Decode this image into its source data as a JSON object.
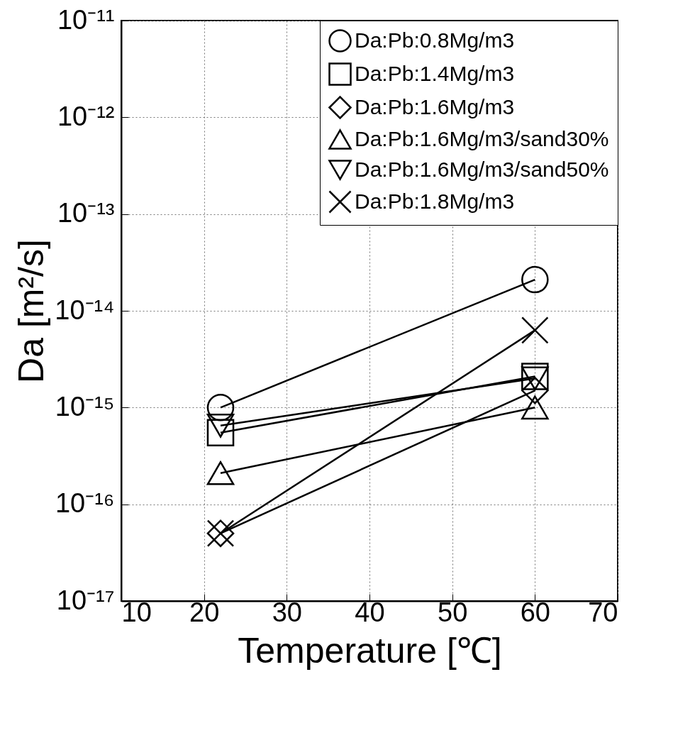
{
  "chart_data": {
    "type": "line",
    "xlabel": "Temperature [℃]",
    "ylabel": "Da [m²/s]",
    "x": [
      22,
      60
    ],
    "series": [
      {
        "name": "Da:Pb:0.8Mg/m3",
        "color": "#000000",
        "marker": "circle",
        "values": [
          1e-15,
          2.1e-14
        ]
      },
      {
        "name": "Da:Pb:1.4Mg/m3",
        "color": "#000000",
        "marker": "square",
        "values": [
          5.5e-16,
          2.1e-15
        ]
      },
      {
        "name": "Da:Pb:1.6Mg/m3",
        "color": "#000000",
        "marker": "diamond",
        "values": [
          5e-17,
          1.5e-15
        ]
      },
      {
        "name": "Da:Pb:1.6Mg/m3/sand30%",
        "color": "#000000",
        "marker": "triangle",
        "values": [
          2.1e-16,
          1e-15
        ]
      },
      {
        "name": "Da:Pb:1.6Mg/m3/sand50%",
        "color": "#000000",
        "marker": "triangle-down",
        "values": [
          6.5e-16,
          2e-15
        ]
      },
      {
        "name": "Da:Pb:1.8Mg/m3",
        "color": "#000000",
        "marker": "cross",
        "values": [
          5e-17,
          6.3e-15
        ]
      }
    ],
    "xlim": [
      10,
      70
    ],
    "xticks": [
      10,
      20,
      30,
      40,
      50,
      60,
      70
    ],
    "ylim": [
      1e-17,
      1e-11
    ],
    "log": true,
    "yticks": [
      {
        "value": 1e-17,
        "label": "10⁻¹⁷"
      },
      {
        "value": 1e-16,
        "label": "10⁻¹⁶"
      },
      {
        "value": 1e-15,
        "label": "10⁻¹⁵"
      },
      {
        "value": 1e-14,
        "label": "10⁻¹⁴"
      },
      {
        "value": 1e-13,
        "label": "10⁻¹³"
      },
      {
        "value": 1e-12,
        "label": "10⁻¹²"
      },
      {
        "value": 1e-11,
        "label": "10⁻¹¹"
      }
    ],
    "grid": true,
    "legend": "top right",
    "line_style": "solid"
  }
}
